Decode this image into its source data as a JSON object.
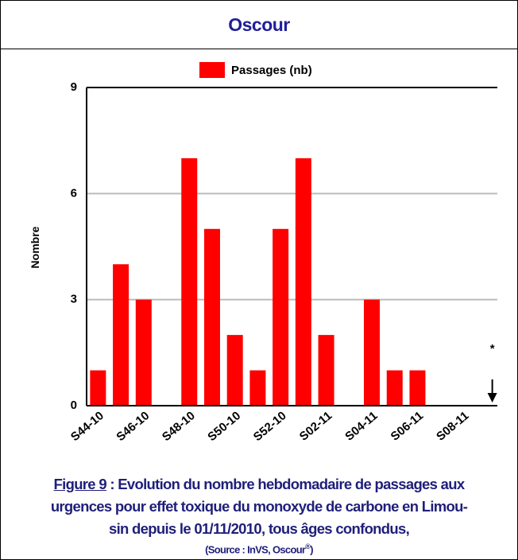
{
  "header": {
    "title": "Oscour"
  },
  "chart_data": {
    "type": "bar",
    "categories": [
      "S44-10",
      null,
      "S46-10",
      null,
      "S48-10",
      null,
      "S50-10",
      null,
      "S52-10",
      null,
      "S02-11",
      null,
      "S04-11",
      null,
      "S06-11",
      null,
      "S08-11",
      null
    ],
    "series": [
      {
        "name": "Passages (nb)",
        "color": "#ff0000",
        "values": [
          1,
          4,
          3,
          0,
          7,
          5,
          2,
          1,
          5,
          7,
          2,
          0,
          3,
          1,
          1,
          0,
          0,
          null
        ]
      }
    ],
    "ylabel": "Nombre",
    "ylim": [
      0,
      9
    ],
    "yticks": [
      0,
      3,
      6,
      9
    ],
    "grid": true,
    "annotation": "*"
  },
  "caption": {
    "figure_label": "Figure 9",
    "lines": [
      " : Evolution du nombre hebdomadaire de passages aux",
      "urgences pour effet toxique du  monoxyde de carbone en Limou-",
      "sin depuis le 01/11/2010, tous âges confondus,"
    ],
    "source": "(Source : InVS, Oscour",
    "source_mark": "®",
    "source_end": ")"
  }
}
